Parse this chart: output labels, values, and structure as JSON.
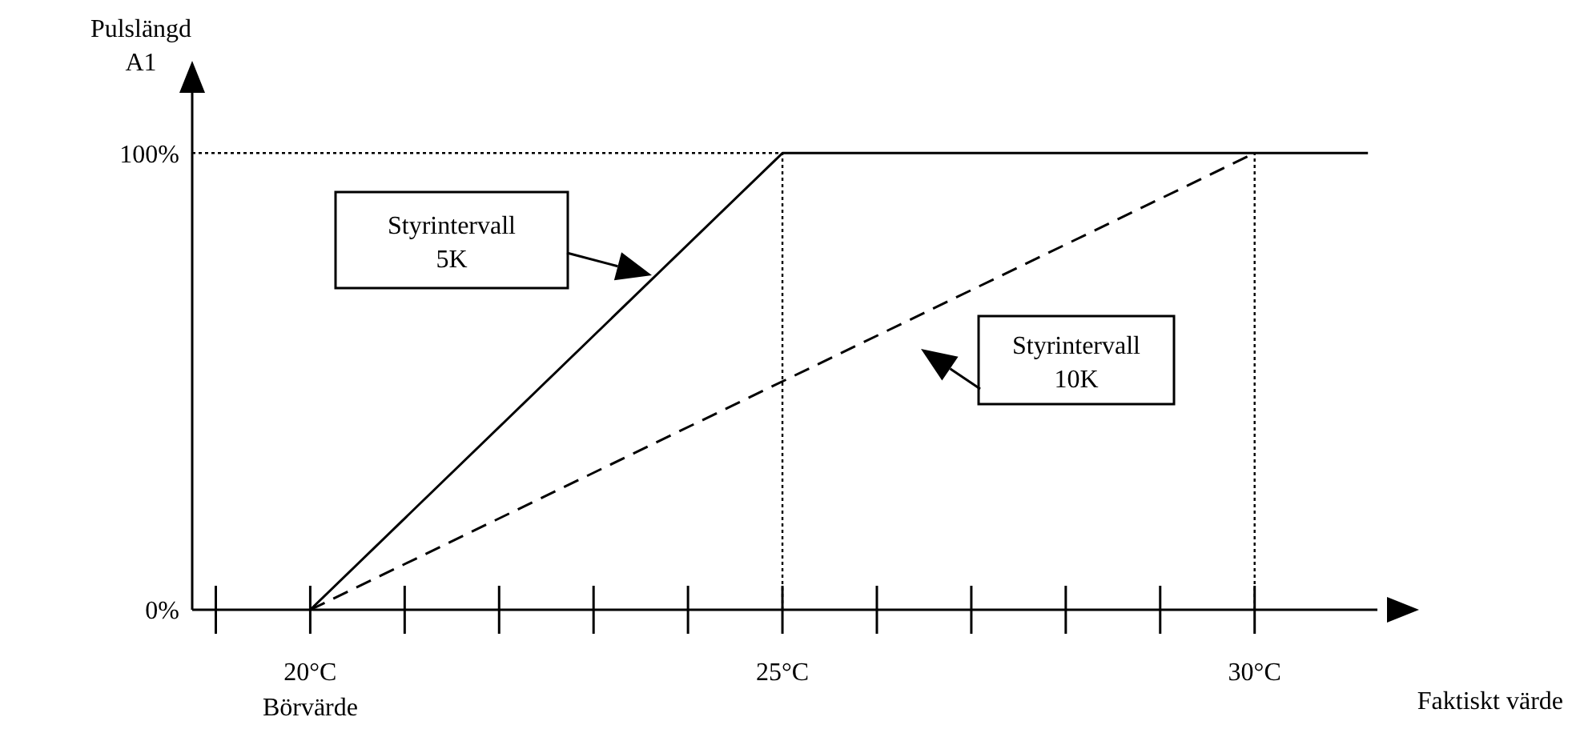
{
  "chart_data": {
    "type": "line",
    "xlabel": "Faktiskt värde",
    "ylabel": "Pulslängd A1",
    "series": [
      {
        "color": "#000000",
        "line_style": "solid",
        "x": [
          20,
          25,
          31.2
        ],
        "values": [
          0,
          100,
          100
        ]
      },
      {
        "color": "#000000",
        "line_style": "dashed",
        "x": [
          20,
          30
        ],
        "values": [
          0,
          100
        ]
      }
    ],
    "xlim": [
      18.75,
      31.3
    ],
    "xticks": [
      {
        "value": 19,
        "label": null
      },
      {
        "value": 20,
        "label": "20°C\nBörvärde"
      },
      {
        "value": 21,
        "label": null
      },
      {
        "value": 22,
        "label": null
      },
      {
        "value": 23,
        "label": null
      },
      {
        "value": 24,
        "label": null
      },
      {
        "value": 25,
        "label": "25°C"
      },
      {
        "value": 26,
        "label": null
      },
      {
        "value": 27,
        "label": null
      },
      {
        "value": 28,
        "label": null
      },
      {
        "value": 29,
        "label": null
      },
      {
        "value": 30,
        "label": "30°C"
      }
    ],
    "ylim": [
      0,
      116
    ],
    "yticks": [
      {
        "value": 0,
        "label": "0%"
      },
      {
        "value": 100,
        "label": "100%"
      }
    ],
    "ref_lines": [
      {
        "axis": "y",
        "value": 100,
        "line_style": "dotted",
        "color": "#000000"
      },
      {
        "axis": "x",
        "value": 25,
        "line_style": "dotted",
        "color": "#000000"
      },
      {
        "axis": "x",
        "value": 30,
        "line_style": "dotted",
        "color": "#000000"
      }
    ],
    "annotations": [
      "Styrintervall 5K",
      "Styrintervall 10K"
    ],
    "marker": "none"
  }
}
